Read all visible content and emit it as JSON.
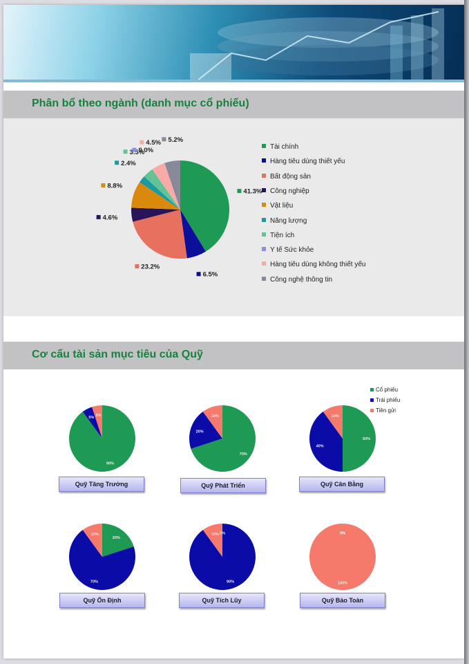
{
  "sector_section": {
    "title": "Phân bổ theo ngành (danh mục cổ phiếu)"
  },
  "allocation_section": {
    "title": "Cơ cấu tài sản mục tiêu của Quỹ"
  },
  "chart_data": [
    {
      "type": "pie",
      "series": [
        {
          "values": [
            41.3,
            6.5,
            23.2,
            4.6,
            8.8,
            2.4,
            3.5,
            0.0,
            4.5,
            5.2
          ]
        }
      ],
      "categories": [
        "Tài chính",
        "Hàng tiêu dùng thiết yếu",
        "Bất động sản",
        "Công nghiệp",
        "Vật liệu",
        "Năng lượng",
        "Tiện ích",
        "Y tế Sức khỏe",
        "Hàng tiêu dùng không thiết yếu",
        "Công nghệ thông tin"
      ],
      "labels": [
        "41.3%",
        "6.5%",
        "23.2%",
        "4.6%",
        "8.8%",
        "2.4%",
        "3.5%",
        "0.0%",
        "4.5%",
        "5.2%"
      ],
      "colors": [
        "#1f9a54",
        "#0b0f99",
        "#e8705f",
        "#2a1458",
        "#d98a0d",
        "#1c9aa0",
        "#64c394",
        "#8f8ee6",
        "#f8aaa7",
        "#888a99"
      ],
      "legend": "right"
    },
    {
      "type": "pie",
      "title": "Quỹ Tăng Trưởng",
      "categories": [
        "Cổ phiếu",
        "Trái phiếu",
        "Tiền gửi"
      ],
      "values": [
        90,
        5,
        5
      ],
      "labels": [
        "90%",
        "5%",
        "5%"
      ]
    },
    {
      "type": "pie",
      "title": "Quỹ Phát Triển",
      "categories": [
        "Cổ phiếu",
        "Trái phiếu",
        "Tiền gửi"
      ],
      "values": [
        70,
        20,
        10
      ],
      "labels": [
        "70%",
        "20%",
        "10%"
      ]
    },
    {
      "type": "pie",
      "title": "Quỹ Cân Bằng",
      "categories": [
        "Cổ phiếu",
        "Trái phiếu",
        "Tiền gửi"
      ],
      "values": [
        50,
        40,
        10
      ],
      "labels": [
        "50%",
        "40%",
        "10%"
      ],
      "legend": "top-right"
    },
    {
      "type": "pie",
      "title": "Quỹ Ổn Định",
      "categories": [
        "Cổ phiếu",
        "Trái phiếu",
        "Tiền gửi"
      ],
      "values": [
        20,
        70,
        10
      ],
      "labels": [
        "20%",
        "70%",
        "10%"
      ]
    },
    {
      "type": "pie",
      "title": "Quỹ Tích Lũy",
      "categories": [
        "Cổ phiếu",
        "Trái phiếu",
        "Tiền gửi"
      ],
      "values": [
        0,
        90,
        10
      ],
      "labels": [
        "0%",
        "90%",
        "10%"
      ]
    },
    {
      "type": "pie",
      "title": "Quỹ Bảo Toàn",
      "categories": [
        "Cổ phiếu",
        "Trái phiếu",
        "Tiền gửi"
      ],
      "values": [
        0,
        0,
        100
      ],
      "labels": [
        "0%",
        "0%",
        "100%"
      ]
    }
  ],
  "fund_colors": [
    "#1f9a54",
    "#0b0ca8",
    "#f57a6c"
  ]
}
